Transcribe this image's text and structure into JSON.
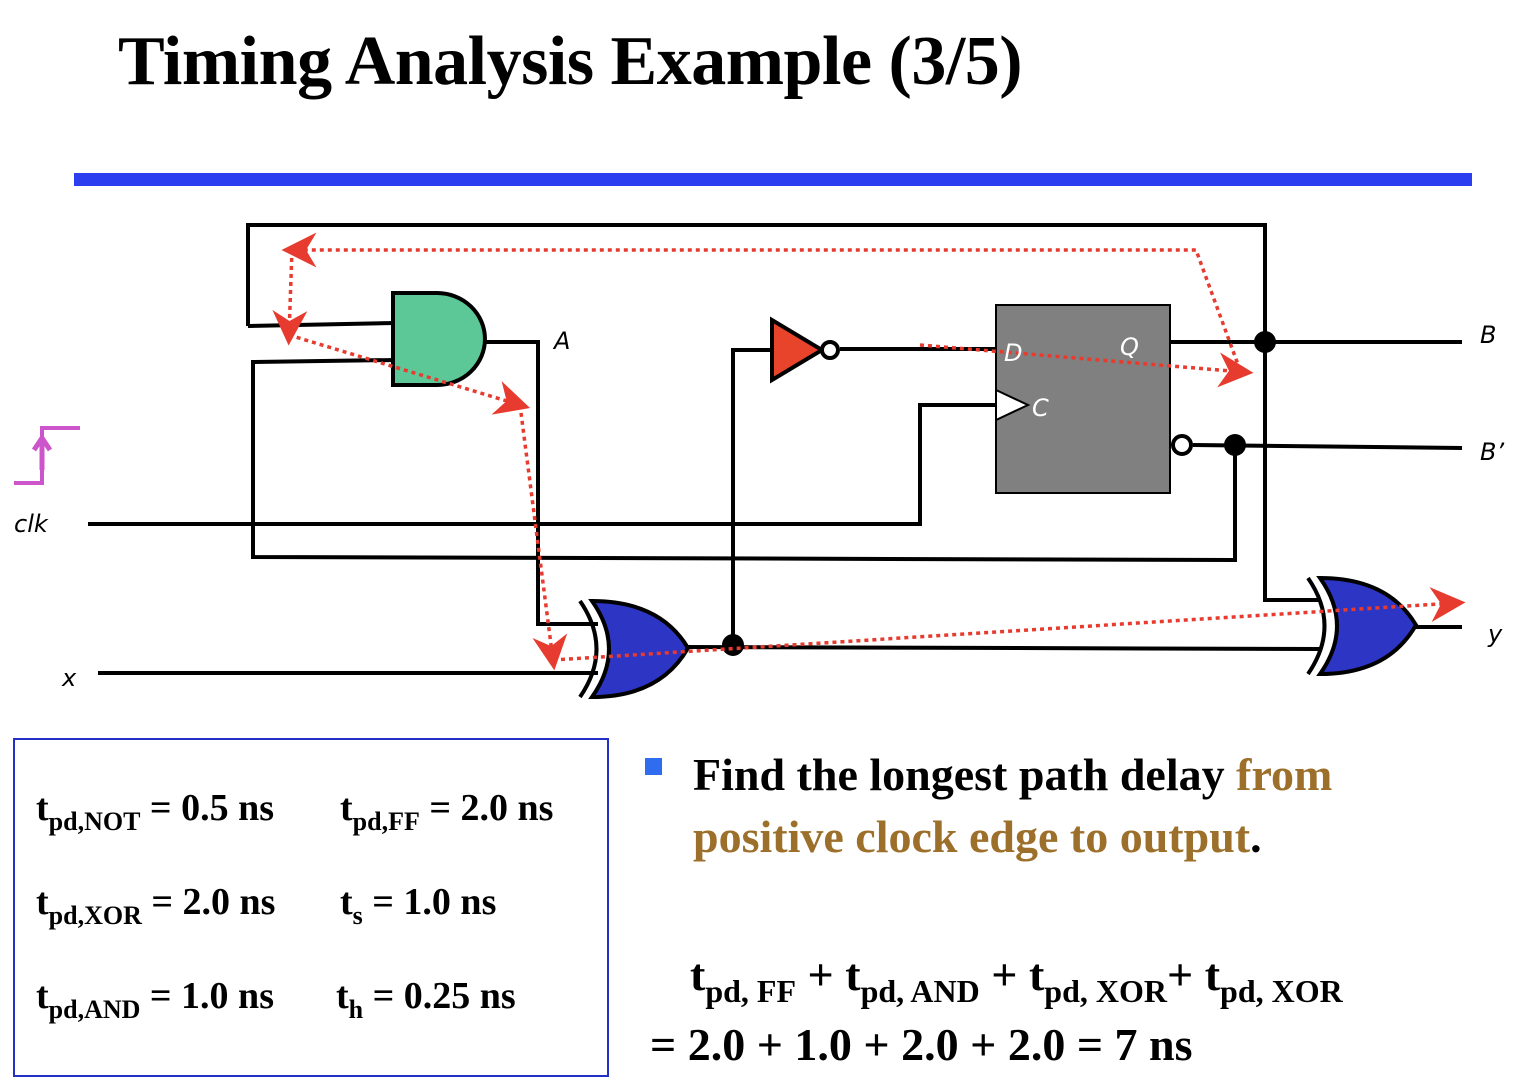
{
  "title": "Timing Analysis Example (3/5)",
  "diagram": {
    "labels": {
      "A": "A",
      "B": "B",
      "B_prime": "B’",
      "clk": "clk",
      "x": "x",
      "y": "y",
      "D": "D",
      "Q": "Q",
      "C": "C"
    },
    "colors": {
      "and_gate": "#5cc898",
      "not_gate": "#e8442b",
      "xor_gate": "#2d35c4",
      "flip_flop": "#808080",
      "critical_path": "#e63b2e",
      "clock_edge": "#cc55cc",
      "title_rule": "#2c3ff0"
    }
  },
  "params": {
    "not": {
      "t": "t",
      "sub": "pd,NOT",
      "value": "= 0.5 ns"
    },
    "ff": {
      "t": "t",
      "sub": "pd,FF",
      "value": "= 2.0 ns"
    },
    "xor": {
      "t": "t",
      "sub": "pd,XOR",
      "value": "= 2.0 ns"
    },
    "ts": {
      "t": "t",
      "sub": "s",
      "value": "= 1.0 ns"
    },
    "and": {
      "t": "t",
      "sub": "pd,AND",
      "value": "= 1.0 ns"
    },
    "th": {
      "t": "t",
      "sub": "h",
      "value": "= 0.25 ns"
    }
  },
  "bullet": {
    "lead": "Find the longest path delay ",
    "highlight": "from positive clock edge to output",
    "end": "."
  },
  "equation": {
    "terms": [
      {
        "t": "t",
        "sub": "pd, FF"
      },
      {
        "t": "t",
        "sub": "pd, AND"
      },
      {
        "t": "t",
        "sub": "pd, XOR"
      },
      {
        "t": "t",
        "sub": "pd, XOR"
      }
    ],
    "plus": "+",
    "result": "= 2.0 + 1.0 + 2.0 + 2.0 = 7 ns"
  }
}
